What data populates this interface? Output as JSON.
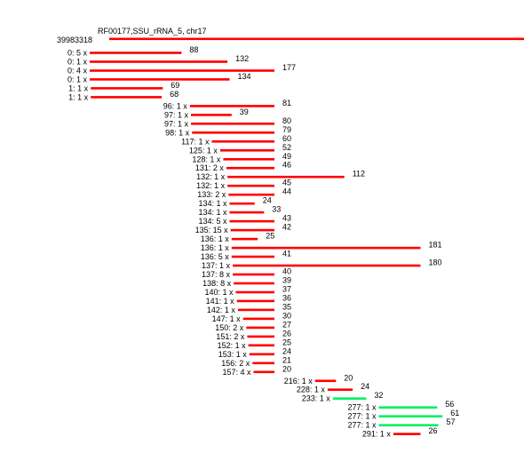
{
  "header": {
    "title": "RF00177,SSU_rRNA_5, chr17",
    "position": "39983318"
  },
  "colors": {
    "background": "#ffffff",
    "read": "#ff0000",
    "highlight": "#00ee66",
    "text": "#000000"
  },
  "chart_data": {
    "type": "read-alignment",
    "reads": [
      {
        "label": "0: 5 x",
        "start": 0,
        "length": 88,
        "kind": "read"
      },
      {
        "label": "0: 1 x",
        "start": 0,
        "length": 132,
        "kind": "read"
      },
      {
        "label": "0: 4 x",
        "start": 0,
        "length": 177,
        "kind": "read"
      },
      {
        "label": "0: 1 x",
        "start": 0,
        "length": 134,
        "kind": "read"
      },
      {
        "label": "1: 1 x",
        "start": 1,
        "length": 69,
        "kind": "read"
      },
      {
        "label": "1: 1 x",
        "start": 1,
        "length": 68,
        "kind": "read"
      },
      {
        "label": "96: 1 x",
        "start": 96,
        "length": 81,
        "kind": "read"
      },
      {
        "label": "97: 1 x",
        "start": 97,
        "length": 39,
        "kind": "read"
      },
      {
        "label": "97: 1 x",
        "start": 97,
        "length": 80,
        "kind": "read"
      },
      {
        "label": "98: 1 x",
        "start": 98,
        "length": 79,
        "kind": "read"
      },
      {
        "label": "117: 1 x",
        "start": 117,
        "length": 60,
        "kind": "read"
      },
      {
        "label": "125: 1 x",
        "start": 125,
        "length": 52,
        "kind": "read"
      },
      {
        "label": "128: 1 x",
        "start": 128,
        "length": 49,
        "kind": "read"
      },
      {
        "label": "131: 2 x",
        "start": 131,
        "length": 46,
        "kind": "read"
      },
      {
        "label": "132: 1 x",
        "start": 132,
        "length": 112,
        "kind": "read"
      },
      {
        "label": "132: 1 x",
        "start": 132,
        "length": 45,
        "kind": "read"
      },
      {
        "label": "133: 2 x",
        "start": 133,
        "length": 44,
        "kind": "read"
      },
      {
        "label": "134: 1 x",
        "start": 134,
        "length": 24,
        "kind": "read"
      },
      {
        "label": "134: 1 x",
        "start": 134,
        "length": 33,
        "kind": "read"
      },
      {
        "label": "134: 5 x",
        "start": 134,
        "length": 43,
        "kind": "read"
      },
      {
        "label": "135: 15 x",
        "start": 135,
        "length": 42,
        "kind": "read"
      },
      {
        "label": "136: 1 x",
        "start": 136,
        "length": 25,
        "kind": "read"
      },
      {
        "label": "136: 1 x",
        "start": 136,
        "length": 181,
        "kind": "read"
      },
      {
        "label": "136: 5 x",
        "start": 136,
        "length": 41,
        "kind": "read"
      },
      {
        "label": "137: 1 x",
        "start": 137,
        "length": 180,
        "kind": "read"
      },
      {
        "label": "137: 8 x",
        "start": 137,
        "length": 40,
        "kind": "read"
      },
      {
        "label": "138: 8 x",
        "start": 138,
        "length": 39,
        "kind": "read"
      },
      {
        "label": "140: 1 x",
        "start": 140,
        "length": 37,
        "kind": "read"
      },
      {
        "label": "141: 1 x",
        "start": 141,
        "length": 36,
        "kind": "read"
      },
      {
        "label": "142: 1 x",
        "start": 142,
        "length": 35,
        "kind": "read"
      },
      {
        "label": "147: 1 x",
        "start": 147,
        "length": 30,
        "kind": "read"
      },
      {
        "label": "150: 2 x",
        "start": 150,
        "length": 27,
        "kind": "read"
      },
      {
        "label": "151: 2 x",
        "start": 151,
        "length": 26,
        "kind": "read"
      },
      {
        "label": "152: 1 x",
        "start": 152,
        "length": 25,
        "kind": "read"
      },
      {
        "label": "153: 1 x",
        "start": 153,
        "length": 24,
        "kind": "read"
      },
      {
        "label": "156: 2 x",
        "start": 156,
        "length": 21,
        "kind": "read"
      },
      {
        "label": "157: 4 x",
        "start": 157,
        "length": 20,
        "kind": "read"
      },
      {
        "label": "216: 1 x",
        "start": 216,
        "length": 20,
        "kind": "read"
      },
      {
        "label": "228: 1 x",
        "start": 228,
        "length": 24,
        "kind": "read"
      },
      {
        "label": "233: 1 x",
        "start": 233,
        "length": 32,
        "kind": "highlight"
      },
      {
        "label": "277: 1 x",
        "start": 277,
        "length": 56,
        "kind": "highlight"
      },
      {
        "label": "277: 1 x",
        "start": 277,
        "length": 61,
        "kind": "highlight"
      },
      {
        "label": "277: 1 x",
        "start": 277,
        "length": 57,
        "kind": "highlight"
      },
      {
        "label": "291: 1 x",
        "start": 291,
        "length": 26,
        "kind": "read"
      }
    ]
  }
}
